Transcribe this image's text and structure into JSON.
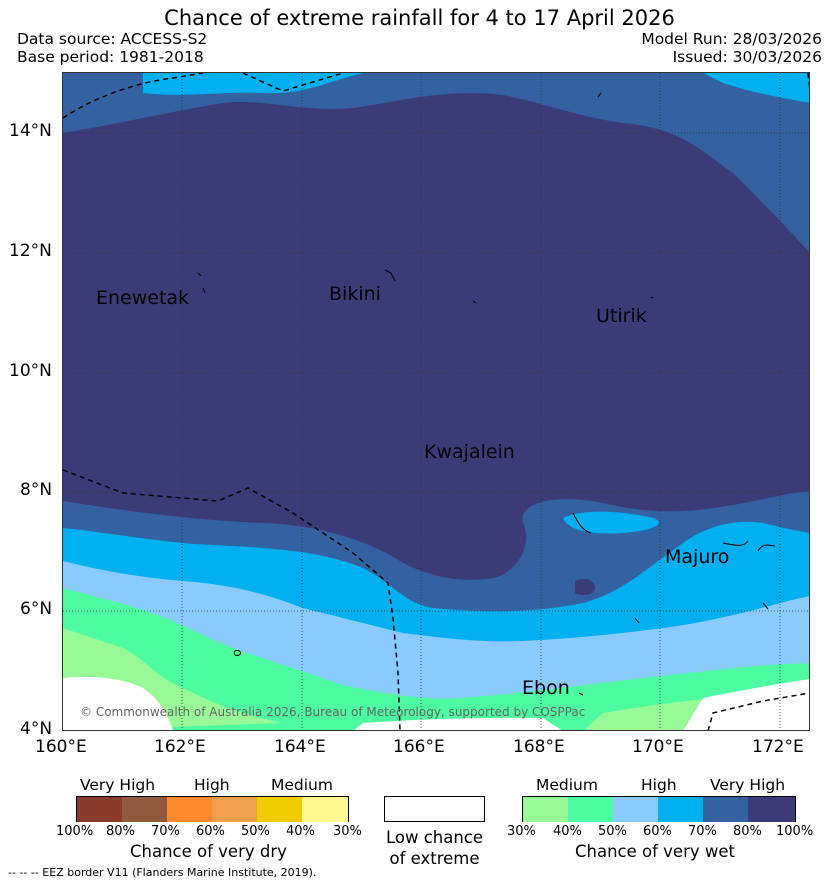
{
  "header": {
    "title": "Chance of extreme rainfall for 4 to 17 April 2026",
    "data_source": "Data source: ACCESS-S2",
    "base_period": "Base period: 1981-2018",
    "model_run": "Model Run: 28/03/2026",
    "issued": "Issued: 30/03/2026"
  },
  "map": {
    "lat_labels": [
      "14°N",
      "12°N",
      "10°N",
      "8°N",
      "6°N",
      "4°N"
    ],
    "lon_labels": [
      "160°E",
      "162°E",
      "164°E",
      "166°E",
      "168°E",
      "170°E",
      "172°E"
    ],
    "places": [
      "Enewetak",
      "Bikini",
      "Utirik",
      "Kwajalein",
      "Majuro",
      "Ebon"
    ],
    "copyright": "© Commonwealth of Australia 2026, Bureau of Meteorology, supported by COSPPac",
    "colors": {
      "very_wet_very_high": "#3b3b78",
      "very_wet_high_dark": "#3461a1",
      "very_wet_high": "#00b0f0",
      "very_wet_medium_high": "#8acbfd",
      "very_wet_medium": "#4dfba0",
      "very_wet_low": "#98fa96",
      "low_chance": "#ffffff"
    }
  },
  "legend": {
    "dry": {
      "headers": [
        "Very High",
        "High",
        "Medium"
      ],
      "ticks": [
        "100%",
        "80%",
        "70%",
        "60%",
        "50%",
        "40%",
        "30%"
      ],
      "colors": [
        "#8b3a2e",
        "#8f5a3e",
        "#fe8a2e",
        "#eea04e",
        "#f0cc00",
        "#fff990"
      ],
      "title": "Chance of very dry"
    },
    "low": {
      "title_line1": "Low chance",
      "title_line2": "of extreme",
      "color": "#ffffff"
    },
    "wet": {
      "headers": [
        "Medium",
        "High",
        "Very High"
      ],
      "ticks": [
        "30%",
        "40%",
        "50%",
        "60%",
        "70%",
        "80%",
        "100%"
      ],
      "colors": [
        "#98fa96",
        "#4dfba0",
        "#8acbfd",
        "#00b0f0",
        "#3461a1",
        "#3b3b78"
      ],
      "title": "Chance of very wet"
    }
  },
  "footer": {
    "eez_note": "--  --  -- EEZ border V11 (Flanders Marine Institute, 2019)."
  }
}
